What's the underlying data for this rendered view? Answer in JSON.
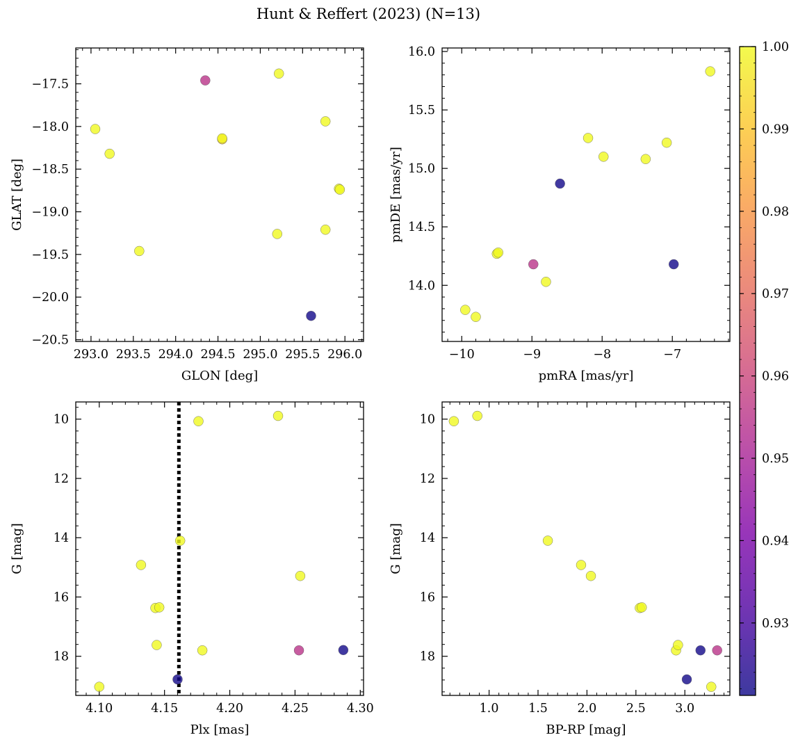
{
  "figure": {
    "title": "Hunt & Reffert (2023) (N=13)"
  },
  "colorbar": {
    "cmap": "plasma",
    "range": [
      0.9212,
      1.0
    ],
    "ticks": [
      0.93,
      0.94,
      0.95,
      0.96,
      0.97,
      0.98,
      0.99,
      1.0
    ],
    "tick_labels": [
      "0.93",
      "0.94",
      "0.95",
      "0.96",
      "0.97",
      "0.98",
      "0.99",
      "1.00"
    ]
  },
  "chart_data": [
    {
      "type": "scatter",
      "panel": "top-left",
      "xlabel": "GLON [deg]",
      "ylabel": "GLAT [deg]",
      "xlim": [
        292.82,
        296.22
      ],
      "ylim": [
        -20.52,
        -17.08
      ],
      "inverted_y": false,
      "xticks": [
        293.0,
        293.5,
        294.0,
        294.5,
        295.0,
        295.5,
        296.0
      ],
      "xtick_labels": [
        "293.0",
        "293.5",
        "294.0",
        "294.5",
        "295.0",
        "295.5",
        "296.0"
      ],
      "yticks": [
        -17.5,
        -18.0,
        -18.5,
        -19.0,
        -19.5,
        -20.0,
        -20.5
      ],
      "ytick_labels": [
        "−17.5",
        "−18.0",
        "−18.5",
        "−19.0",
        "−19.5",
        "−20.0",
        "−20.5"
      ],
      "x": [
        293.05,
        293.22,
        293.57,
        294.35,
        294.55,
        294.55,
        295.2,
        295.22,
        295.6,
        295.77,
        295.77,
        295.93,
        295.94
      ],
      "y": [
        -18.03,
        -18.32,
        -19.46,
        -17.46,
        -18.15,
        -18.14,
        -19.26,
        -17.38,
        -20.22,
        -17.94,
        -19.21,
        -18.73,
        -18.74
      ],
      "color_values": [
        1.0,
        1.0,
        1.0,
        0.955,
        0.992,
        1.0,
        1.0,
        1.0,
        0.922,
        1.0,
        1.0,
        1.0,
        1.0
      ]
    },
    {
      "type": "scatter",
      "panel": "top-right",
      "xlabel": "pmRA [mas/yr]",
      "ylabel": "pmDE [mas/yr]",
      "xlim": [
        -10.28,
        -6.18
      ],
      "ylim": [
        13.52,
        16.03
      ],
      "inverted_y": false,
      "xticks": [
        -10,
        -9,
        -8,
        -7
      ],
      "xtick_labels": [
        "−10",
        "−9",
        "−8",
        "−7"
      ],
      "yticks": [
        14.0,
        14.5,
        15.0,
        15.5,
        16.0
      ],
      "ytick_labels": [
        "14.0",
        "14.5",
        "15.0",
        "15.5",
        "16.0"
      ],
      "x": [
        -9.95,
        -9.8,
        -9.5,
        -9.48,
        -8.98,
        -8.8,
        -8.6,
        -8.2,
        -7.98,
        -7.38,
        -7.08,
        -6.98,
        -6.46
      ],
      "y": [
        13.79,
        13.73,
        14.27,
        14.28,
        14.18,
        14.03,
        14.87,
        15.26,
        15.1,
        15.08,
        15.22,
        14.18,
        15.83
      ],
      "color_values": [
        1.0,
        1.0,
        1.0,
        1.0,
        0.955,
        1.0,
        0.922,
        1.0,
        1.0,
        1.0,
        1.0,
        0.922,
        1.0
      ]
    },
    {
      "type": "scatter",
      "panel": "bottom-left",
      "xlabel": "Plx [mas]",
      "ylabel": "G [mag]",
      "xlim": [
        4.082,
        4.3025
      ],
      "ylim": [
        19.32,
        9.42
      ],
      "inverted_y": true,
      "xticks": [
        4.1,
        4.15,
        4.2,
        4.25,
        4.3
      ],
      "xtick_labels": [
        "4.10",
        "4.15",
        "4.20",
        "4.25",
        "4.30"
      ],
      "yticks": [
        10,
        12,
        14,
        16,
        18
      ],
      "ytick_labels": [
        "10",
        "12",
        "14",
        "16",
        "18"
      ],
      "reference_line_x": 4.161,
      "x": [
        4.1,
        4.132,
        4.143,
        4.146,
        4.144,
        4.16,
        4.162,
        4.176,
        4.179,
        4.237,
        4.253,
        4.254,
        4.287
      ],
      "y": [
        19.03,
        14.92,
        16.37,
        16.35,
        17.62,
        18.78,
        14.1,
        10.07,
        17.8,
        9.89,
        17.8,
        15.29,
        17.79
      ],
      "color_values": [
        1.0,
        1.0,
        1.0,
        1.0,
        1.0,
        0.922,
        1.0,
        1.0,
        1.0,
        1.0,
        0.955,
        1.0,
        0.922
      ]
    },
    {
      "type": "scatter",
      "panel": "bottom-right",
      "xlabel": "BP-RP [mag]",
      "ylabel": "G [mag]",
      "xlim": [
        0.52,
        3.46
      ],
      "ylim": [
        19.32,
        9.42
      ],
      "inverted_y": true,
      "xticks": [
        1.0,
        1.5,
        2.0,
        2.5,
        3.0
      ],
      "xtick_labels": [
        "1.0",
        "1.5",
        "2.0",
        "2.5",
        "3.0"
      ],
      "yticks": [
        10,
        12,
        14,
        16,
        18
      ],
      "ytick_labels": [
        "10",
        "12",
        "14",
        "16",
        "18"
      ],
      "x": [
        0.64,
        0.88,
        1.6,
        1.94,
        2.04,
        2.54,
        2.56,
        2.91,
        2.93,
        3.02,
        3.16,
        3.27,
        3.33
      ],
      "y": [
        10.07,
        9.89,
        14.1,
        14.92,
        15.29,
        16.37,
        16.35,
        17.8,
        17.62,
        18.78,
        17.8,
        19.03,
        17.8
      ],
      "color_values": [
        1.0,
        1.0,
        1.0,
        1.0,
        1.0,
        1.0,
        1.0,
        1.0,
        1.0,
        0.922,
        0.922,
        1.0,
        0.955
      ]
    }
  ]
}
